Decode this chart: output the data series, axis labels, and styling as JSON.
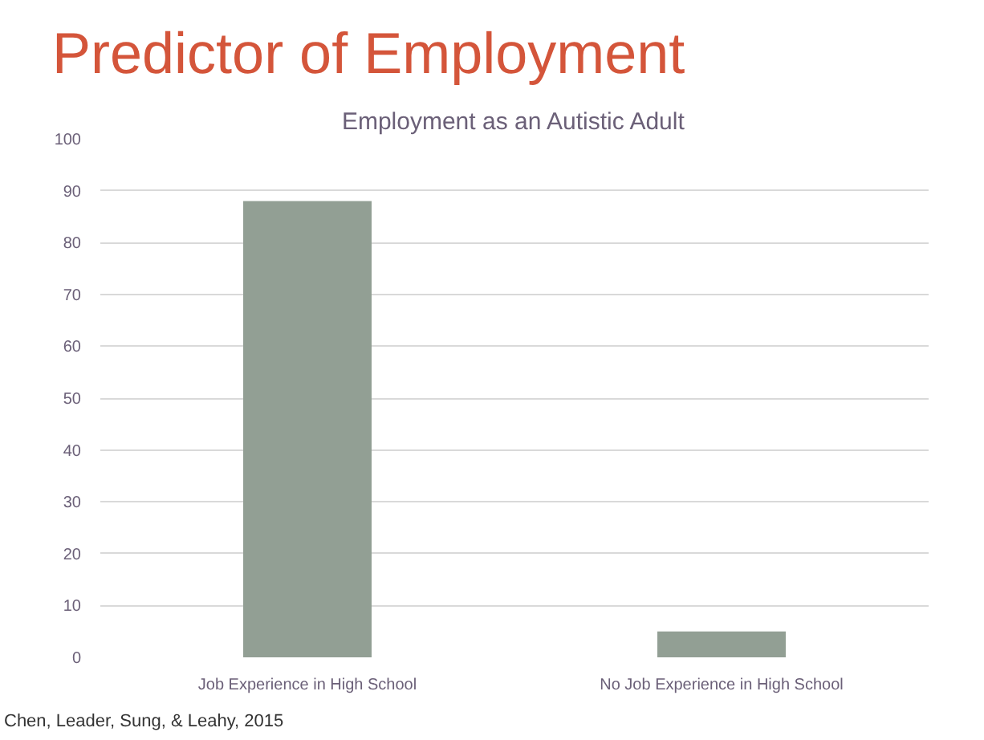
{
  "chart_data": {
    "type": "bar",
    "title": "Predictor of Employment",
    "subtitle": "Employment as an Autistic Adult",
    "categories": [
      "Job Experience in High School",
      "No Job Experience in High School"
    ],
    "values": [
      88,
      5
    ],
    "color": "#929f94",
    "ylim": [
      0,
      100
    ],
    "yticks": [
      0,
      10,
      20,
      30,
      40,
      50,
      60,
      70,
      80,
      90,
      100
    ],
    "grid": "y",
    "annotations": [
      "Chen, Leader, Sung, & Leahy, 2015"
    ]
  }
}
